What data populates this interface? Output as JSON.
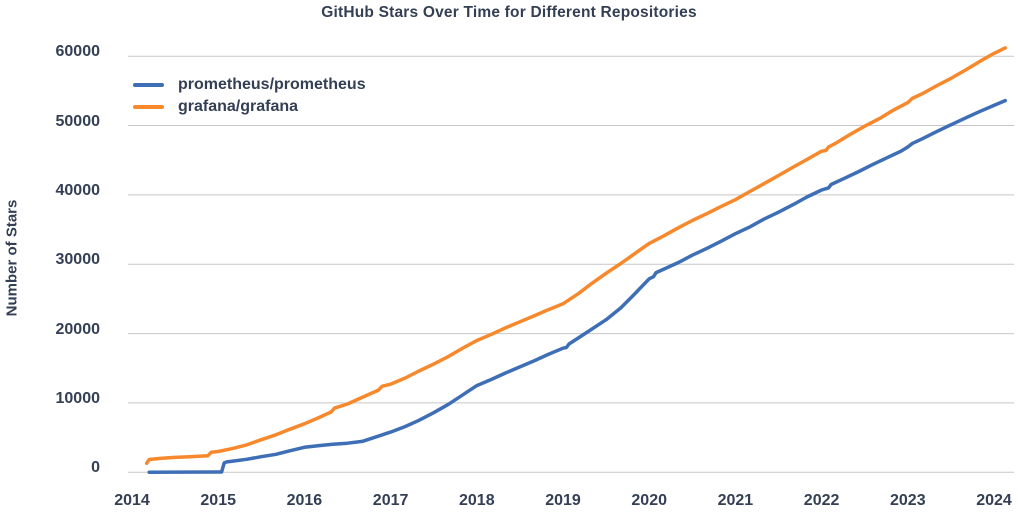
{
  "chart_data": {
    "type": "line",
    "title": "GitHub Stars Over Time for Different Repositories",
    "xlabel": "",
    "ylabel": "Number of Stars",
    "x_ticks": [
      2014,
      2015,
      2016,
      2017,
      2018,
      2019,
      2020,
      2021,
      2022,
      2023,
      2024
    ],
    "y_ticks": [
      0,
      10000,
      20000,
      30000,
      40000,
      50000,
      60000
    ],
    "x_range": [
      2013.95,
      2024.28
    ],
    "y_range": [
      0,
      62400
    ],
    "grid": "horizontal-only",
    "legend_position": "upper-left-inside",
    "series": [
      {
        "name": "prometheus/prometheus",
        "color": "#3E6EB5",
        "points": [
          [
            2014.2,
            20
          ],
          [
            2014.5,
            30
          ],
          [
            2015.0,
            40
          ],
          [
            2015.04,
            50
          ],
          [
            2015.07,
            1350
          ],
          [
            2015.1,
            1500
          ],
          [
            2015.17,
            1620
          ],
          [
            2015.33,
            1870
          ],
          [
            2015.5,
            2250
          ],
          [
            2015.67,
            2600
          ],
          [
            2015.83,
            3100
          ],
          [
            2016.0,
            3600
          ],
          [
            2016.17,
            3850
          ],
          [
            2016.33,
            4050
          ],
          [
            2016.5,
            4200
          ],
          [
            2016.67,
            4450
          ],
          [
            2016.83,
            5100
          ],
          [
            2017.0,
            5800
          ],
          [
            2017.17,
            6600
          ],
          [
            2017.33,
            7500
          ],
          [
            2017.5,
            8600
          ],
          [
            2017.67,
            9800
          ],
          [
            2017.83,
            11100
          ],
          [
            2018.0,
            12500
          ],
          [
            2018.17,
            13400
          ],
          [
            2018.33,
            14300
          ],
          [
            2018.5,
            15200
          ],
          [
            2018.67,
            16100
          ],
          [
            2018.83,
            17000
          ],
          [
            2019.0,
            17900
          ],
          [
            2019.04,
            18000
          ],
          [
            2019.07,
            18500
          ],
          [
            2019.17,
            19300
          ],
          [
            2019.33,
            20600
          ],
          [
            2019.5,
            22000
          ],
          [
            2019.67,
            23700
          ],
          [
            2019.83,
            25700
          ],
          [
            2020.0,
            27900
          ],
          [
            2020.05,
            28200
          ],
          [
            2020.08,
            28800
          ],
          [
            2020.17,
            29300
          ],
          [
            2020.33,
            30200
          ],
          [
            2020.5,
            31300
          ],
          [
            2020.67,
            32300
          ],
          [
            2020.83,
            33300
          ],
          [
            2021.0,
            34400
          ],
          [
            2021.17,
            35400
          ],
          [
            2021.33,
            36500
          ],
          [
            2021.5,
            37500
          ],
          [
            2021.67,
            38600
          ],
          [
            2021.83,
            39700
          ],
          [
            2022.0,
            40700
          ],
          [
            2022.08,
            41000
          ],
          [
            2022.11,
            41500
          ],
          [
            2022.25,
            42300
          ],
          [
            2022.42,
            43300
          ],
          [
            2022.58,
            44300
          ],
          [
            2022.75,
            45300
          ],
          [
            2022.92,
            46300
          ],
          [
            2023.0,
            46900
          ],
          [
            2023.05,
            47400
          ],
          [
            2023.17,
            48100
          ],
          [
            2023.33,
            49100
          ],
          [
            2023.5,
            50100
          ],
          [
            2023.67,
            51100
          ],
          [
            2023.83,
            52000
          ],
          [
            2024.0,
            52900
          ],
          [
            2024.13,
            53600
          ]
        ]
      },
      {
        "name": "grafana/grafana",
        "color": "#F7882B",
        "points": [
          [
            2014.17,
            1300
          ],
          [
            2014.2,
            1850
          ],
          [
            2014.33,
            2000
          ],
          [
            2014.5,
            2150
          ],
          [
            2014.67,
            2250
          ],
          [
            2014.88,
            2400
          ],
          [
            2014.92,
            2900
          ],
          [
            2015.0,
            3000
          ],
          [
            2015.17,
            3450
          ],
          [
            2015.33,
            3950
          ],
          [
            2015.5,
            4700
          ],
          [
            2015.67,
            5400
          ],
          [
            2015.83,
            6200
          ],
          [
            2016.0,
            7000
          ],
          [
            2016.17,
            7900
          ],
          [
            2016.31,
            8700
          ],
          [
            2016.35,
            9250
          ],
          [
            2016.5,
            9850
          ],
          [
            2016.67,
            10800
          ],
          [
            2016.86,
            11850
          ],
          [
            2016.9,
            12400
          ],
          [
            2017.0,
            12700
          ],
          [
            2017.17,
            13600
          ],
          [
            2017.33,
            14600
          ],
          [
            2017.5,
            15600
          ],
          [
            2017.67,
            16700
          ],
          [
            2017.83,
            17850
          ],
          [
            2018.0,
            19000
          ],
          [
            2018.17,
            19900
          ],
          [
            2018.33,
            20800
          ],
          [
            2018.5,
            21700
          ],
          [
            2018.67,
            22600
          ],
          [
            2018.83,
            23450
          ],
          [
            2019.0,
            24300
          ],
          [
            2019.17,
            25700
          ],
          [
            2019.33,
            27200
          ],
          [
            2019.5,
            28700
          ],
          [
            2019.67,
            30100
          ],
          [
            2019.83,
            31500
          ],
          [
            2020.0,
            33000
          ],
          [
            2020.17,
            34100
          ],
          [
            2020.33,
            35200
          ],
          [
            2020.5,
            36300
          ],
          [
            2020.67,
            37300
          ],
          [
            2020.83,
            38300
          ],
          [
            2021.0,
            39300
          ],
          [
            2021.17,
            40500
          ],
          [
            2021.33,
            41600
          ],
          [
            2021.5,
            42800
          ],
          [
            2021.67,
            44000
          ],
          [
            2021.83,
            45100
          ],
          [
            2022.0,
            46300
          ],
          [
            2022.05,
            46400
          ],
          [
            2022.08,
            46900
          ],
          [
            2022.17,
            47500
          ],
          [
            2022.33,
            48700
          ],
          [
            2022.5,
            49900
          ],
          [
            2022.67,
            51000
          ],
          [
            2022.83,
            52200
          ],
          [
            2023.0,
            53300
          ],
          [
            2023.05,
            53900
          ],
          [
            2023.17,
            54600
          ],
          [
            2023.33,
            55700
          ],
          [
            2023.5,
            56800
          ],
          [
            2023.67,
            58000
          ],
          [
            2023.83,
            59200
          ],
          [
            2024.0,
            60400
          ],
          [
            2024.13,
            61200
          ]
        ]
      }
    ]
  }
}
